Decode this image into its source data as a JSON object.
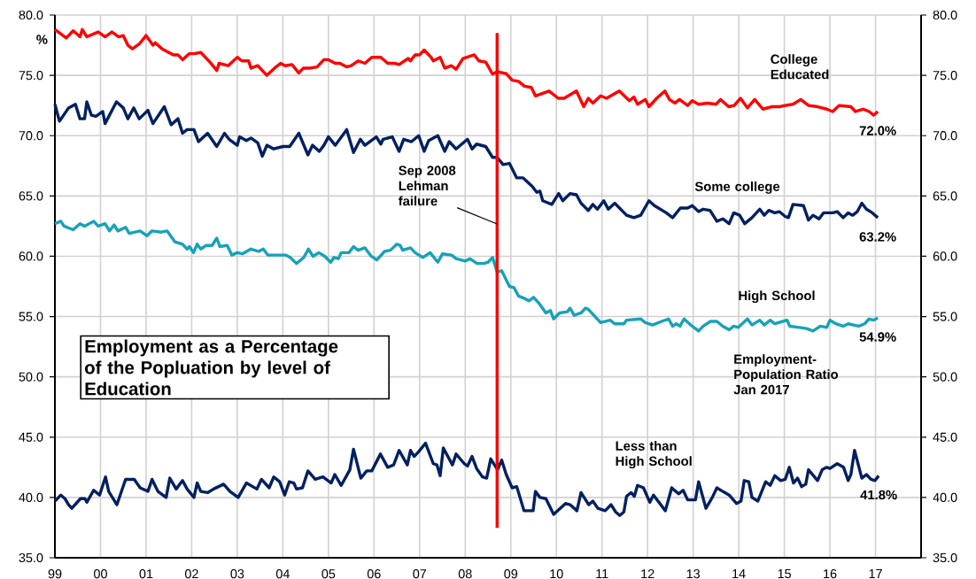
{
  "chart_data": {
    "type": "line",
    "title": "Employment as a Percentage of the Popluation by level of Education",
    "ylabel": "%",
    "xlim": [
      1999,
      2018
    ],
    "ylim": [
      35,
      80
    ],
    "y2lim": [
      35,
      80
    ],
    "grid": true,
    "xticks": [
      {
        "value": 1999,
        "label": "99"
      },
      {
        "value": 2000,
        "label": "00"
      },
      {
        "value": 2001,
        "label": "01"
      },
      {
        "value": 2002,
        "label": "02"
      },
      {
        "value": 2003,
        "label": "03"
      },
      {
        "value": 2004,
        "label": "04"
      },
      {
        "value": 2005,
        "label": "05"
      },
      {
        "value": 2006,
        "label": "06"
      },
      {
        "value": 2007,
        "label": "07"
      },
      {
        "value": 2008,
        "label": "08"
      },
      {
        "value": 2009,
        "label": "09"
      },
      {
        "value": 2010,
        "label": "10"
      },
      {
        "value": 2011,
        "label": "11"
      },
      {
        "value": 2012,
        "label": "12"
      },
      {
        "value": 2013,
        "label": "13"
      },
      {
        "value": 2014,
        "label": "14"
      },
      {
        "value": 2015,
        "label": "15"
      },
      {
        "value": 2016,
        "label": "16"
      },
      {
        "value": 2017,
        "label": "17"
      },
      {
        "value": 2018,
        "label": null
      }
    ],
    "yticks": [
      {
        "value": 35,
        "label": "35.0"
      },
      {
        "value": 40,
        "label": "40.0"
      },
      {
        "value": 45,
        "label": "45.0"
      },
      {
        "value": 50,
        "label": "50.0"
      },
      {
        "value": 55,
        "label": "55.0"
      },
      {
        "value": 60,
        "label": "60.0"
      },
      {
        "value": 65,
        "label": "65.0"
      },
      {
        "value": 70,
        "label": "70.0"
      },
      {
        "value": 75,
        "label": "75.0"
      },
      {
        "value": 80,
        "label": "80.0"
      }
    ],
    "y2ticks": [
      {
        "value": 35,
        "label": "35.0"
      },
      {
        "value": 40,
        "label": "40.0"
      },
      {
        "value": 45,
        "label": "45.0"
      },
      {
        "value": 50,
        "label": "50.0"
      },
      {
        "value": 55,
        "label": "55.0"
      },
      {
        "value": 60,
        "label": "60.0"
      },
      {
        "value": 65,
        "label": "65.0"
      },
      {
        "value": 70,
        "label": "70.0"
      },
      {
        "value": 75,
        "label": "75.0"
      },
      {
        "value": 80,
        "label": "80.0"
      }
    ],
    "ref_lines": [
      {
        "axis": "x",
        "value": 2008.7,
        "label": "Sep 2008 Lehman failure",
        "color": "#ff0000"
      }
    ],
    "annotations": [
      "72.0%",
      "63.2%",
      "54.9%",
      "41.8%",
      "Employment-Population Ratio Jan 2017"
    ],
    "series": [
      {
        "name": "College Educated",
        "color": "#ff0000",
        "x": [
          1999.0,
          1999.25,
          1999.4,
          1999.55,
          1999.6,
          1999.7,
          1999.95,
          2000.1,
          2000.25,
          2000.4,
          2000.5,
          2000.6,
          2000.7,
          2000.85,
          2001.0,
          2001.15,
          2001.2,
          2001.35,
          2001.6,
          2001.7,
          2001.8,
          2001.95,
          2002.05,
          2002.2,
          2002.4,
          2002.55,
          2002.6,
          2002.8,
          2003.0,
          2003.1,
          2003.25,
          2003.3,
          2003.45,
          2003.65,
          2003.85,
          2003.95,
          2004.05,
          2004.2,
          2004.35,
          2004.45,
          2004.6,
          2004.75,
          2004.9,
          2005.0,
          2005.15,
          2005.25,
          2005.4,
          2005.5,
          2005.65,
          2005.8,
          2005.95,
          2006.15,
          2006.3,
          2006.45,
          2006.55,
          2006.75,
          2006.8,
          2006.9,
          2007.0,
          2007.1,
          2007.25,
          2007.3,
          2007.45,
          2007.55,
          2007.7,
          2007.8,
          2007.95,
          2008.2,
          2008.3,
          2008.45,
          2008.6,
          2008.7,
          2008.9,
          2009.03,
          2009.17,
          2009.3,
          2009.45,
          2009.54,
          2009.84,
          2010.04,
          2010.17,
          2010.44,
          2010.6,
          2010.7,
          2010.8,
          2010.97,
          2011.1,
          2011.38,
          2011.6,
          2011.7,
          2011.78,
          2011.95,
          2012.03,
          2012.2,
          2012.38,
          2012.48,
          2012.6,
          2012.7,
          2012.88,
          2012.98,
          2013.12,
          2013.32,
          2013.5,
          2013.6,
          2013.78,
          2013.9,
          2014.04,
          2014.19,
          2014.35,
          2014.53,
          2014.72,
          2014.9,
          2015.02,
          2015.19,
          2015.36,
          2015.53,
          2015.73,
          2015.93,
          2016.06,
          2016.2,
          2016.46,
          2016.56,
          2016.73,
          2016.86,
          2016.96,
          2017.05
        ],
        "values": [
          78.8,
          78.1,
          78.7,
          78.2,
          78.8,
          78.2,
          78.6,
          78.2,
          78.6,
          78.2,
          78.3,
          77.5,
          77.2,
          77.6,
          78.3,
          77.5,
          77.7,
          77.2,
          76.7,
          76.7,
          76.3,
          76.8,
          76.8,
          76.9,
          76.1,
          75.4,
          76.0,
          75.8,
          76.5,
          76.2,
          76.2,
          75.6,
          75.8,
          75.0,
          75.7,
          76.0,
          75.8,
          75.9,
          75.2,
          75.6,
          75.6,
          75.7,
          76.3,
          76.3,
          76.0,
          76.0,
          75.7,
          75.8,
          76.2,
          76.0,
          76.5,
          76.5,
          76.0,
          76.0,
          75.9,
          76.4,
          76.2,
          76.7,
          76.7,
          77.1,
          76.5,
          76.2,
          76.5,
          75.6,
          75.8,
          75.5,
          76.4,
          76.7,
          76.2,
          76.1,
          75.1,
          75.3,
          75.15,
          74.6,
          74.5,
          74.1,
          74.0,
          73.3,
          73.7,
          73.1,
          73.1,
          73.7,
          72.4,
          73.1,
          72.7,
          73.3,
          73.1,
          73.7,
          72.9,
          73.2,
          72.6,
          73.0,
          72.4,
          73.1,
          73.7,
          73.0,
          72.7,
          73.0,
          72.5,
          72.9,
          72.6,
          72.7,
          72.6,
          73.0,
          72.4,
          72.5,
          73.1,
          72.3,
          73.0,
          72.2,
          72.4,
          72.4,
          72.5,
          72.6,
          73.0,
          72.5,
          72.4,
          72.2,
          72.0,
          72.5,
          72.4,
          72.0,
          72.2,
          72.0,
          71.7,
          72.0
        ]
      },
      {
        "name": "Some college",
        "color": "#002060",
        "x": [
          1999.0,
          1999.1,
          1999.3,
          1999.45,
          1999.55,
          1999.65,
          1999.7,
          1999.8,
          1999.9,
          2000.05,
          2000.1,
          2000.35,
          2000.5,
          2000.6,
          2000.73,
          2000.85,
          2001.04,
          2001.15,
          2001.4,
          2001.55,
          2001.7,
          2001.8,
          2001.9,
          2002.05,
          2002.15,
          2002.35,
          2002.55,
          2002.72,
          2002.82,
          2003.0,
          2003.05,
          2003.2,
          2003.3,
          2003.45,
          2003.55,
          2003.65,
          2003.8,
          2004.0,
          2004.15,
          2004.35,
          2004.55,
          2004.65,
          2004.8,
          2004.9,
          2005.0,
          2005.15,
          2005.4,
          2005.55,
          2005.7,
          2005.8,
          2006.05,
          2006.15,
          2006.2,
          2006.4,
          2006.55,
          2006.65,
          2006.82,
          2006.98,
          2007.1,
          2007.2,
          2007.4,
          2007.55,
          2007.65,
          2007.8,
          2008.05,
          2008.15,
          2008.25,
          2008.45,
          2008.6,
          2008.7,
          2008.83,
          2008.97,
          2009.13,
          2009.27,
          2009.47,
          2009.57,
          2009.64,
          2009.7,
          2009.9,
          2010.05,
          2010.14,
          2010.3,
          2010.44,
          2010.54,
          2010.7,
          2010.8,
          2010.9,
          2011.04,
          2011.14,
          2011.28,
          2011.54,
          2011.7,
          2011.85,
          2012.03,
          2012.15,
          2012.28,
          2012.41,
          2012.55,
          2012.72,
          2012.88,
          2012.98,
          2013.12,
          2013.22,
          2013.37,
          2013.52,
          2013.65,
          2013.79,
          2013.89,
          2014.02,
          2014.13,
          2014.29,
          2014.46,
          2014.56,
          2014.66,
          2014.79,
          2014.89,
          2015.02,
          2015.09,
          2015.19,
          2015.42,
          2015.53,
          2015.63,
          2015.76,
          2015.86,
          2016.06,
          2016.16,
          2016.29,
          2016.4,
          2016.5,
          2016.6,
          2016.7,
          2016.8,
          2016.93,
          2017.05
        ],
        "values": [
          72.6,
          71.2,
          72.3,
          72.6,
          71.4,
          71.4,
          72.8,
          71.7,
          71.6,
          72.0,
          71.0,
          72.8,
          72.3,
          71.4,
          72.3,
          71.4,
          72.1,
          71.0,
          72.4,
          70.9,
          71.4,
          70.2,
          70.5,
          70.5,
          69.5,
          70.2,
          69.1,
          70.2,
          69.7,
          69.2,
          69.9,
          69.6,
          69.8,
          69.4,
          68.3,
          69.2,
          68.9,
          69.1,
          69.1,
          70.2,
          68.4,
          69.2,
          68.7,
          69.2,
          69.9,
          69.2,
          70.5,
          68.6,
          69.7,
          69.2,
          69.9,
          69.3,
          69.7,
          69.9,
          68.7,
          69.7,
          69.5,
          70.0,
          68.7,
          69.6,
          70.0,
          68.7,
          69.5,
          68.9,
          69.7,
          68.9,
          69.3,
          69.1,
          68.2,
          68.2,
          67.6,
          67.7,
          66.5,
          66.5,
          65.8,
          65.3,
          65.4,
          64.6,
          64.3,
          65.2,
          64.6,
          65.2,
          65.1,
          64.4,
          63.8,
          64.3,
          63.9,
          64.6,
          63.9,
          64.4,
          63.4,
          63.2,
          63.4,
          64.6,
          64.2,
          63.9,
          63.6,
          63.2,
          64.0,
          64.0,
          64.2,
          63.7,
          63.9,
          63.8,
          62.9,
          63.1,
          62.7,
          63.6,
          63.4,
          62.7,
          63.2,
          63.9,
          63.4,
          63.8,
          63.6,
          63.7,
          63.3,
          63.2,
          64.3,
          64.2,
          63.0,
          63.4,
          63.1,
          63.6,
          63.6,
          63.7,
          63.2,
          63.6,
          63.4,
          63.7,
          64.4,
          63.9,
          63.6,
          63.2
        ]
      },
      {
        "name": "High School",
        "color": "#17a2b8",
        "x": [
          1999.0,
          1999.13,
          1999.2,
          1999.4,
          1999.55,
          1999.65,
          1999.85,
          1999.95,
          2000.1,
          2000.2,
          2000.3,
          2000.38,
          2000.55,
          2000.63,
          2000.87,
          2001.02,
          2001.13,
          2001.33,
          2001.46,
          2001.63,
          2001.8,
          2001.9,
          2001.95,
          2002.04,
          2002.12,
          2002.2,
          2002.32,
          2002.45,
          2002.55,
          2002.62,
          2002.78,
          2002.88,
          2003.0,
          2003.11,
          2003.3,
          2003.47,
          2003.57,
          2003.67,
          2003.87,
          2004.06,
          2004.16,
          2004.3,
          2004.46,
          2004.56,
          2004.66,
          2004.79,
          2004.92,
          2005.05,
          2005.12,
          2005.22,
          2005.28,
          2005.45,
          2005.55,
          2005.65,
          2005.8,
          2005.94,
          2006.06,
          2006.23,
          2006.36,
          2006.5,
          2006.57,
          2006.63,
          2006.8,
          2006.9,
          2007.07,
          2007.23,
          2007.4,
          2007.5,
          2007.7,
          2007.8,
          2008.0,
          2008.1,
          2008.26,
          2008.4,
          2008.5,
          2008.6,
          2008.7,
          2008.8,
          2008.97,
          2009.07,
          2009.17,
          2009.3,
          2009.4,
          2009.5,
          2009.64,
          2009.77,
          2009.87,
          2009.94,
          2010.07,
          2010.24,
          2010.3,
          2010.39,
          2010.54,
          2010.64,
          2010.7,
          2010.97,
          2011.18,
          2011.28,
          2011.48,
          2011.54,
          2011.85,
          2011.95,
          2012.11,
          2012.31,
          2012.46,
          2012.55,
          2012.63,
          2012.71,
          2012.8,
          2012.98,
          2013.12,
          2013.22,
          2013.38,
          2013.52,
          2013.65,
          2013.79,
          2013.89,
          2013.99,
          2014.19,
          2014.29,
          2014.46,
          2014.56,
          2014.69,
          2014.79,
          2015.06,
          2015.12,
          2015.33,
          2015.49,
          2015.63,
          2015.79,
          2015.93,
          2016.0,
          2016.13,
          2016.29,
          2016.4,
          2016.63,
          2016.76,
          2016.86,
          2016.96,
          2017.05
        ],
        "values": [
          62.7,
          62.9,
          62.5,
          62.2,
          62.7,
          62.5,
          62.9,
          62.5,
          62.7,
          62.1,
          62.6,
          62.1,
          62.4,
          61.9,
          62.1,
          61.7,
          62.1,
          62.0,
          62.1,
          61.2,
          61.0,
          60.6,
          60.8,
          60.3,
          61.0,
          60.6,
          60.9,
          60.9,
          61.5,
          60.8,
          60.9,
          60.1,
          60.3,
          60.2,
          60.6,
          60.4,
          60.6,
          60.1,
          60.1,
          60.1,
          59.9,
          59.4,
          59.9,
          60.6,
          60.0,
          60.3,
          60.0,
          59.5,
          59.9,
          59.8,
          60.3,
          60.3,
          60.8,
          60.5,
          60.7,
          60.0,
          59.7,
          60.4,
          60.5,
          61.0,
          60.9,
          60.5,
          60.7,
          60.3,
          59.9,
          60.3,
          59.5,
          60.2,
          60.1,
          59.8,
          59.6,
          59.8,
          59.4,
          59.4,
          59.5,
          59.9,
          58.7,
          58.8,
          57.5,
          57.4,
          56.7,
          56.5,
          56.3,
          56.6,
          56.0,
          55.3,
          55.5,
          54.8,
          55.3,
          55.4,
          55.7,
          55.1,
          55.3,
          55.7,
          55.6,
          54.5,
          54.7,
          54.4,
          54.4,
          54.7,
          54.8,
          54.5,
          54.3,
          54.6,
          54.8,
          54.2,
          54.4,
          54.2,
          54.8,
          54.2,
          53.8,
          54.2,
          54.6,
          54.6,
          54.2,
          53.9,
          54.2,
          54.1,
          54.8,
          54.3,
          54.7,
          54.3,
          54.7,
          54.4,
          54.7,
          54.2,
          54.1,
          54.0,
          53.8,
          54.2,
          54.1,
          54.7,
          54.4,
          54.2,
          54.4,
          54.2,
          54.4,
          54.8,
          54.7,
          54.9
        ]
      },
      {
        "name": "Less than High School",
        "color": "#002060",
        "x": [
          1999.0,
          1999.13,
          1999.22,
          1999.3,
          1999.37,
          1999.56,
          1999.66,
          1999.7,
          1999.85,
          1999.98,
          2000.11,
          2000.18,
          2000.36,
          2000.55,
          2000.74,
          2000.87,
          2001.04,
          2001.13,
          2001.26,
          2001.44,
          2001.52,
          2001.66,
          2001.8,
          2001.9,
          2002.05,
          2002.12,
          2002.2,
          2002.35,
          2002.48,
          2002.7,
          2002.84,
          2003.02,
          2003.2,
          2003.43,
          2003.53,
          2003.7,
          2003.8,
          2003.93,
          2004.04,
          2004.14,
          2004.24,
          2004.3,
          2004.43,
          2004.55,
          2004.71,
          2004.88,
          2005.06,
          2005.14,
          2005.28,
          2005.47,
          2005.55,
          2005.71,
          2005.84,
          2005.95,
          2006.14,
          2006.3,
          2006.43,
          2006.55,
          2006.73,
          2006.8,
          2006.88,
          2006.98,
          2007.13,
          2007.3,
          2007.38,
          2007.45,
          2007.52,
          2007.72,
          2007.8,
          2007.98,
          2008.05,
          2008.15,
          2008.25,
          2008.38,
          2008.47,
          2008.56,
          2008.71,
          2008.8,
          2008.9,
          2009.03,
          2009.13,
          2009.29,
          2009.49,
          2009.54,
          2009.64,
          2009.77,
          2009.94,
          2010.2,
          2010.3,
          2010.45,
          2010.54,
          2010.71,
          2010.8,
          2010.91,
          2011.07,
          2011.2,
          2011.3,
          2011.39,
          2011.48,
          2011.54,
          2011.64,
          2011.71,
          2011.78,
          2011.91,
          2012.05,
          2012.13,
          2012.39,
          2012.53,
          2012.68,
          2012.78,
          2012.88,
          2013.05,
          2013.12,
          2013.28,
          2013.42,
          2013.52,
          2013.65,
          2013.79,
          2013.95,
          2014.05,
          2014.12,
          2014.22,
          2014.29,
          2014.42,
          2014.59,
          2014.69,
          2014.79,
          2014.92,
          2015.02,
          2015.11,
          2015.2,
          2015.29,
          2015.38,
          2015.47,
          2015.53,
          2015.73,
          2015.83,
          2015.93,
          2016.0,
          2016.16,
          2016.3,
          2016.4,
          2016.46,
          2016.54,
          2016.7,
          2016.8,
          2016.9,
          2016.99,
          2017.07
        ],
        "values": [
          39.7,
          40.2,
          39.9,
          39.4,
          39.1,
          39.9,
          39.9,
          39.6,
          40.6,
          40.2,
          41.7,
          40.5,
          39.4,
          41.5,
          41.5,
          40.8,
          40.5,
          41.5,
          40.5,
          40.0,
          41.6,
          40.7,
          41.4,
          40.7,
          40.0,
          41.2,
          40.5,
          40.4,
          40.7,
          41.1,
          40.5,
          40.0,
          41.2,
          40.7,
          41.5,
          40.8,
          41.7,
          41.3,
          40.2,
          41.3,
          41.2,
          40.7,
          40.8,
          42.2,
          41.5,
          41.7,
          41.2,
          41.9,
          41.0,
          42.3,
          44.0,
          41.6,
          42.2,
          42.2,
          43.6,
          42.5,
          42.7,
          43.9,
          42.7,
          43.9,
          43.4,
          43.8,
          44.5,
          42.8,
          42.7,
          41.8,
          44.1,
          42.7,
          43.6,
          42.8,
          42.6,
          43.4,
          42.4,
          41.7,
          41.6,
          43.2,
          42.3,
          43.1,
          41.9,
          40.8,
          40.9,
          38.9,
          38.9,
          40.5,
          40.0,
          39.9,
          38.6,
          39.5,
          39.4,
          38.9,
          40.4,
          39.4,
          39.7,
          39.1,
          38.9,
          39.4,
          38.8,
          38.5,
          38.8,
          40.1,
          40.4,
          40.1,
          41.0,
          40.8,
          39.6,
          40.2,
          38.9,
          40.8,
          40.3,
          40.6,
          39.8,
          39.8,
          41.3,
          39.1,
          40.0,
          40.8,
          40.5,
          40.2,
          39.5,
          39.7,
          41.4,
          41.3,
          40.0,
          39.7,
          41.3,
          41.0,
          41.8,
          41.4,
          41.5,
          42.5,
          41.2,
          41.6,
          40.9,
          41.1,
          42.3,
          41.4,
          42.3,
          42.5,
          42.4,
          42.8,
          42.5,
          41.4,
          41.9,
          43.9,
          41.6,
          41.9,
          41.5,
          41.4,
          41.8
        ]
      }
    ]
  }
}
